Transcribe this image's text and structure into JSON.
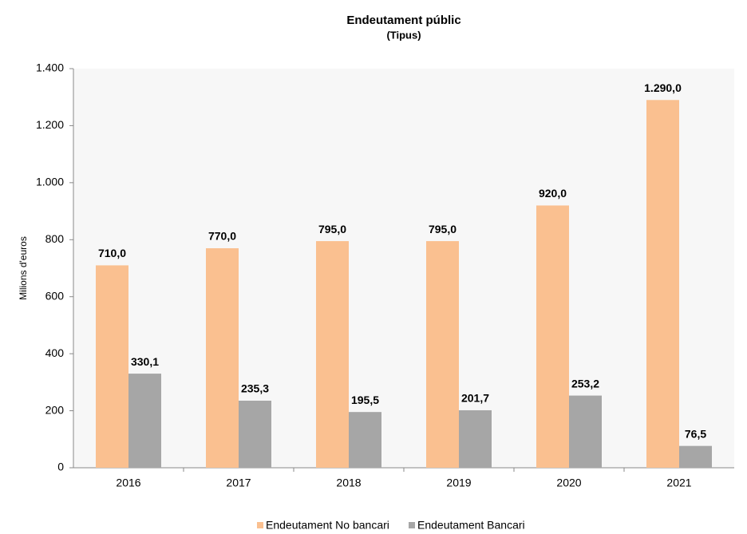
{
  "chart_data": {
    "type": "bar",
    "title": "Endeutament públic",
    "subtitle": "(Tipus)",
    "y_label": "Milions d'euros",
    "categories": [
      "2016",
      "2017",
      "2018",
      "2019",
      "2020",
      "2021"
    ],
    "series": [
      {
        "name": "Endeutament No bancari",
        "color": "#fac090",
        "label_color": "#e46c0a",
        "values": [
          710,
          770,
          795,
          795,
          920,
          1290
        ],
        "value_labels": [
          "710,0",
          "770,0",
          "795,0",
          "795,0",
          "920,0",
          "1.290,0"
        ]
      },
      {
        "name": "Endeutament Bancari",
        "color": "#a6a6a6",
        "label_color": "#7f7f7f",
        "values": [
          330.1,
          235.3,
          195.5,
          201.7,
          253.2,
          76.5
        ],
        "value_labels": [
          "330,1",
          "235,3",
          "195,5",
          "201,7",
          "253,2",
          "76,5"
        ]
      }
    ],
    "ylim": [
      0,
      1400
    ],
    "yticks": [
      0,
      200,
      400,
      600,
      800,
      {
        "value": 1000,
        "label": "1.000"
      },
      {
        "value": 1200,
        "label": "1.200"
      },
      {
        "value": 1400,
        "label": "1.400"
      }
    ],
    "grid": false,
    "legend": "bottom"
  }
}
